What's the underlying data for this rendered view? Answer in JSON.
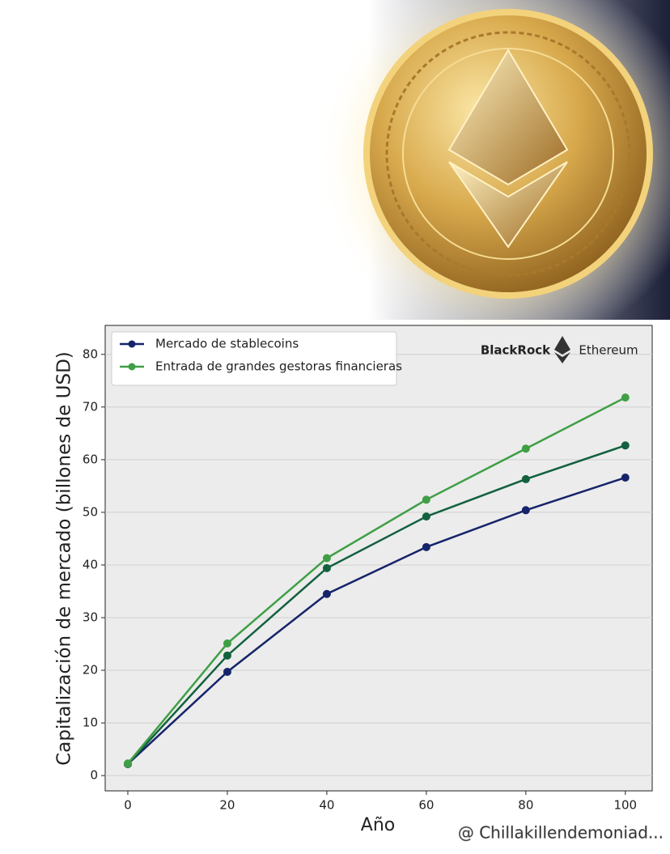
{
  "chart_data": {
    "type": "line",
    "x": [
      0,
      20,
      40,
      60,
      80,
      100
    ],
    "series": [
      {
        "name": "Mercado de stablecoins",
        "color": "#16246b",
        "values": [
          2.2,
          19.7,
          34.5,
          43.4,
          50.4,
          56.6
        ]
      },
      {
        "color": "#13613f",
        "values": [
          2.2,
          22.8,
          39.4,
          49.2,
          56.3,
          62.7
        ]
      },
      {
        "name": "Entrada de grandes gestoras financieras",
        "color": "#3f9f45",
        "values": [
          2.3,
          25.1,
          41.3,
          52.4,
          62.1,
          71.8
        ]
      }
    ],
    "xlim": [
      -4.55,
      105.4
    ],
    "ylim": [
      -2.9,
      85.5
    ],
    "xticks": [
      0,
      20,
      40,
      60,
      80,
      100
    ],
    "yticks": [
      0,
      10,
      20,
      30,
      40,
      50,
      60,
      70,
      80
    ],
    "xlabel": "Año",
    "ylabel": "Capitalización de mercado (billones de USD)",
    "grid": true,
    "legend": "upper left",
    "annotations": [
      "BlackRock",
      "Ethereum"
    ]
  },
  "watermark": "@ Chillakillendemoniad..."
}
